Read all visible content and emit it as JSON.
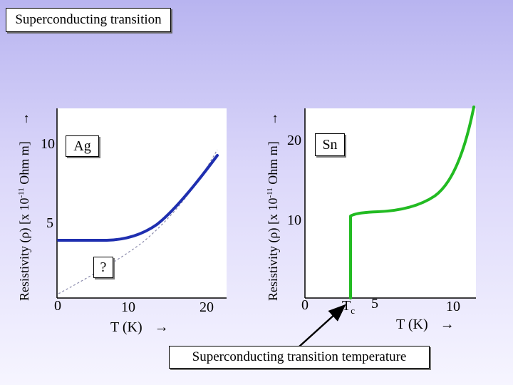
{
  "title": "Superconducting transition",
  "left_panel": {
    "ylabel_prefix": "Resistivity (ρ) [x 10",
    "ylabel_exp": "-11",
    "ylabel_suffix": " Ohm m]",
    "ylabel_arrow": "→",
    "ytick_10": "10",
    "ytick_5": "5",
    "xtick_0": "0",
    "xtick_10": "10",
    "xtick_20": "20",
    "xlabel": "T (K)",
    "xlabel_arrow": "→",
    "material": "Ag",
    "question": "?",
    "curve_color": "#1f2fb0",
    "dashed_color": "#8888aa"
  },
  "right_panel": {
    "ylabel_prefix": "Resistivity (ρ) [x 10",
    "ylabel_exp": "-11",
    "ylabel_suffix": " Ohm m]",
    "ylabel_arrow": "→",
    "ytick_20": "20",
    "ytick_10": "10",
    "xtick_0": "0",
    "tc_main": "T",
    "tc_sub": "c",
    "xtick_5": "5",
    "xtick_10": "10",
    "xlabel": "T (K)",
    "xlabel_arrow": "→",
    "material": "Sn",
    "curve_color": "#22bb22"
  },
  "annotation": {
    "label": "Superconducting transition temperature"
  }
}
